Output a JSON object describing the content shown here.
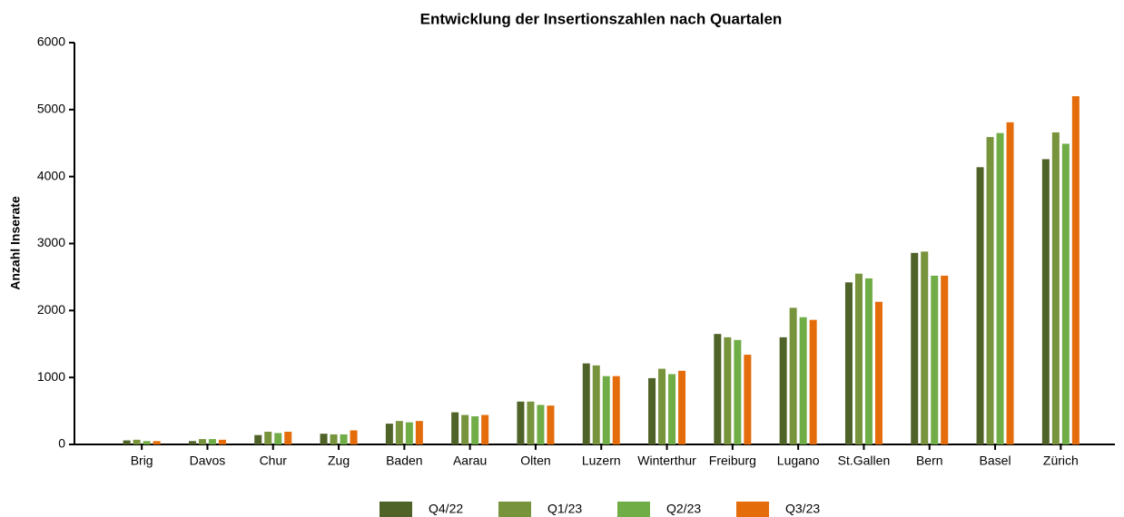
{
  "chart_data": {
    "type": "bar",
    "title": "Entwicklung der Insertionszahlen nach Quartalen",
    "y_label": "Anzahl Inserate",
    "categories": [
      "Brig",
      "Davos",
      "Chur",
      "Zug",
      "Baden",
      "Aarau",
      "Olten",
      "Luzern",
      "Winterthur",
      "Freiburg",
      "Lugano",
      "St.Gallen",
      "Bern",
      "Basel",
      "Zürich"
    ],
    "series": [
      {
        "name": "Q4/22",
        "color": "#4f6228",
        "values": [
          60,
          50,
          140,
          160,
          310,
          480,
          640,
          1210,
          990,
          1650,
          1600,
          2420,
          2860,
          4140,
          4260
        ]
      },
      {
        "name": "Q1/23",
        "color": "#77933c",
        "values": [
          70,
          80,
          190,
          150,
          350,
          440,
          640,
          1180,
          1130,
          1600,
          2040,
          2550,
          2880,
          4590,
          4660
        ]
      },
      {
        "name": "Q2/23",
        "color": "#70ad47",
        "values": [
          50,
          80,
          170,
          150,
          330,
          420,
          590,
          1020,
          1050,
          1560,
          1900,
          2480,
          2520,
          4650,
          4490
        ]
      },
      {
        "name": "Q3/23",
        "color": "#e46c0a",
        "values": [
          50,
          70,
          190,
          210,
          350,
          440,
          580,
          1020,
          1100,
          1340,
          1860,
          2130,
          2520,
          4810,
          5200
        ]
      }
    ],
    "ylim": [
      0,
      6000
    ],
    "yticks": [
      0,
      1000,
      2000,
      3000,
      4000,
      5000,
      6000
    ],
    "legend": "bottom"
  }
}
